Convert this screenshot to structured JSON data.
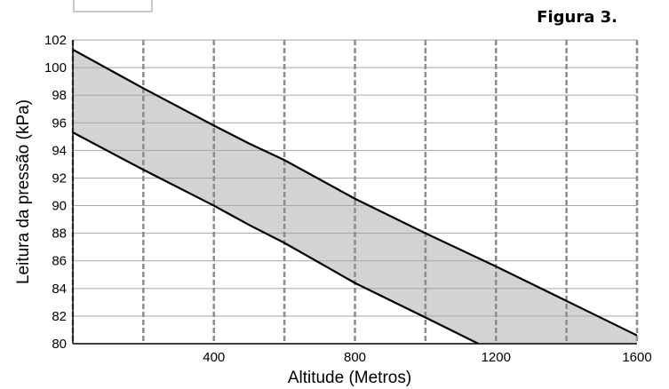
{
  "figure_label": "Figura 3.",
  "chart_data": {
    "type": "area",
    "title": "",
    "xlabel": "Altitude (Metros)",
    "ylabel": "Leitura da pressão (kPa)",
    "xlim": [
      0,
      1600
    ],
    "ylim": [
      80,
      102
    ],
    "x_ticks": [
      400,
      800,
      1200,
      1600
    ],
    "x_tick_labels": [
      "400",
      "800",
      "1200",
      "1600"
    ],
    "y_ticks": [
      80,
      82,
      84,
      86,
      88,
      90,
      92,
      94,
      96,
      98,
      100,
      102
    ],
    "y_tick_labels": [
      "80",
      "82",
      "84",
      "86",
      "88",
      "90",
      "92",
      "94",
      "96",
      "98",
      "100",
      "102"
    ],
    "vertical_grid_dashed": [
      0,
      200,
      400,
      600,
      800,
      1000,
      1200,
      1400,
      1600
    ],
    "grid": true,
    "colors": {
      "band_fill": "#d3d3d5",
      "lines": "#000000",
      "grid_h": "#a6a6a6",
      "grid_v": "#8c8c8c"
    },
    "series": [
      {
        "values": [
          [
            0,
            101.3
          ],
          [
            200,
            98.5
          ],
          [
            400,
            95.8
          ],
          [
            500,
            94.5
          ],
          [
            600,
            93.3
          ],
          [
            800,
            90.5
          ],
          [
            1000,
            88.0
          ],
          [
            1200,
            85.6
          ],
          [
            1400,
            83.1
          ],
          [
            1600,
            80.6
          ]
        ]
      },
      {
        "values": [
          [
            0,
            95.3
          ],
          [
            200,
            92.6
          ],
          [
            400,
            90.0
          ],
          [
            500,
            88.6
          ],
          [
            600,
            87.3
          ],
          [
            800,
            84.4
          ],
          [
            1000,
            81.9
          ],
          [
            1150,
            80.0
          ]
        ]
      }
    ]
  }
}
